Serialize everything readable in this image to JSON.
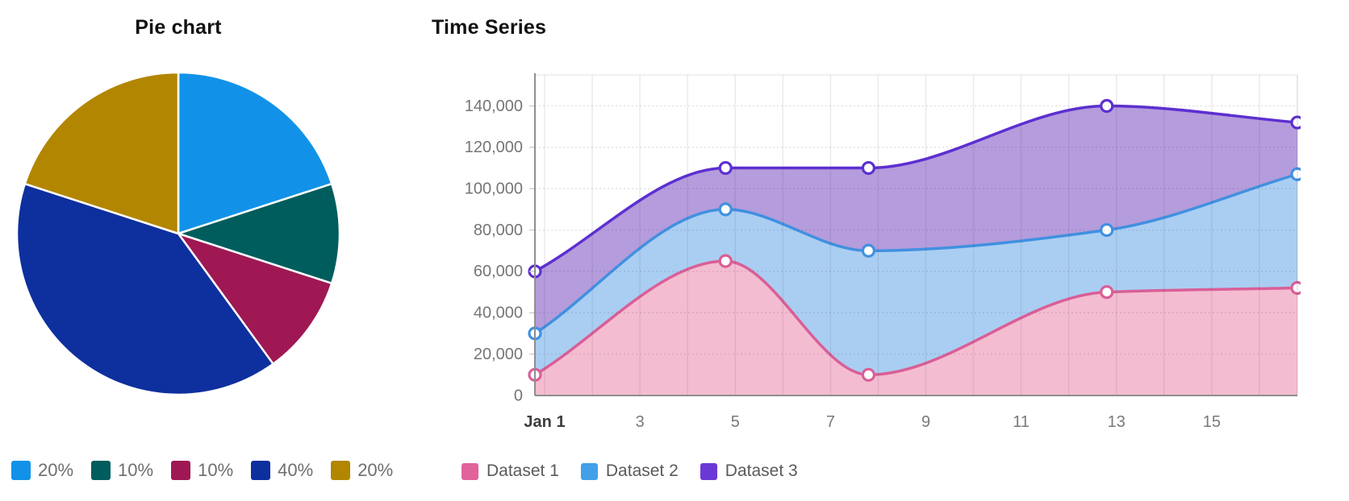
{
  "pie_panel": {
    "title": "Pie chart"
  },
  "ts_panel": {
    "title": "Time Series"
  },
  "chart_data": [
    {
      "type": "pie",
      "title": "Pie chart",
      "labels": [
        "20%",
        "10%",
        "10%",
        "40%",
        "20%"
      ],
      "values": [
        20,
        10,
        10,
        40,
        20
      ],
      "colors": [
        "#1192e8",
        "#005d5d",
        "#9f1853",
        "#0e2f9e",
        "#b28600"
      ],
      "start_angle_deg": 0,
      "direction": "clockwise",
      "legend_position": "bottom",
      "slice_border_color": "#ffffff"
    },
    {
      "type": "area",
      "title": "Time Series",
      "x": [
        1,
        5,
        8,
        13,
        17
      ],
      "x_axis_start_label": "Jan 1",
      "x_tick_days": [
        1,
        3,
        5,
        7,
        9,
        11,
        13,
        15
      ],
      "x_tick_labels": [
        "Jan 1",
        "3",
        "5",
        "7",
        "9",
        "11",
        "13",
        "15"
      ],
      "y_ticks": [
        0,
        20000,
        40000,
        60000,
        80000,
        100000,
        120000,
        140000
      ],
      "y_tick_labels": [
        "0",
        "20,000",
        "40,000",
        "60,000",
        "80,000",
        "100,000",
        "120,000",
        "140,000"
      ],
      "ylim": [
        0,
        155000
      ],
      "xlim_days": [
        1,
        17
      ],
      "grid": true,
      "curve": "monotone",
      "legend_position": "bottom",
      "series": [
        {
          "name": "Dataset 1",
          "values": [
            10000,
            65000,
            10000,
            50000,
            52000
          ],
          "line_color": "#d95f97",
          "fill_color": "#f4bcd1",
          "swatch_color": "#e0639c"
        },
        {
          "name": "Dataset 2",
          "values": [
            30000,
            90000,
            70000,
            80000,
            107000
          ],
          "line_color": "#4190e0",
          "fill_color": "#aacef2",
          "swatch_color": "#42a0e8"
        },
        {
          "name": "Dataset 3",
          "values": [
            60000,
            110000,
            110000,
            140000,
            132000
          ],
          "line_color": "#5d2fd1",
          "fill_color": "#b59cdc",
          "swatch_color": "#6b38d6"
        }
      ]
    }
  ]
}
